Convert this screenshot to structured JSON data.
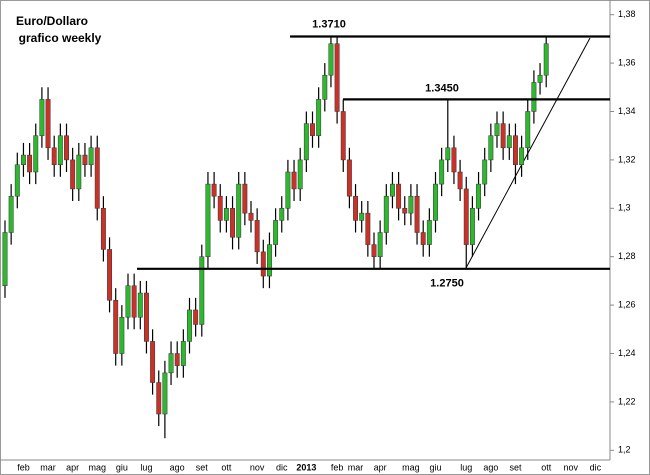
{
  "chart_data": {
    "type": "candlestick",
    "title_lines": [
      "Euro/Dollaro",
      "grafico weekly"
    ],
    "categories": [
      null,
      null,
      null,
      "feb",
      null,
      null,
      null,
      "mar",
      null,
      null,
      null,
      "apr",
      null,
      null,
      null,
      "mag",
      null,
      null,
      null,
      "giu",
      null,
      null,
      null,
      "lug",
      null,
      null,
      null,
      null,
      "ago",
      null,
      null,
      null,
      "set",
      null,
      null,
      null,
      "ott",
      null,
      null,
      null,
      null,
      "nov",
      null,
      null,
      null,
      "dic",
      null,
      null,
      null,
      "2013",
      null,
      null,
      null,
      null,
      "feb",
      null,
      null,
      "mar",
      null,
      null,
      null,
      "apr",
      null,
      null,
      null,
      null,
      "mag",
      null,
      null,
      null,
      "giu",
      null,
      null,
      null,
      null,
      "lug",
      null,
      null,
      null,
      "ago",
      null,
      null,
      null,
      "set",
      null,
      null,
      null,
      null,
      "ott",
      null,
      null,
      null,
      "nov",
      null,
      null,
      null,
      "dic"
    ],
    "open": [
      1.268,
      1.29,
      1.305,
      1.318,
      1.322,
      1.315,
      1.33,
      1.345,
      1.325,
      1.318,
      1.33,
      1.32,
      1.308,
      1.322,
      1.318,
      1.325,
      1.3,
      1.283,
      1.262,
      1.24,
      1.255,
      1.268,
      1.255,
      1.265,
      1.245,
      1.228,
      1.215,
      1.232,
      1.24,
      1.235,
      1.245,
      1.258,
      1.252,
      1.28,
      1.31,
      1.305,
      1.295,
      1.3,
      1.288,
      1.31,
      1.298,
      1.295,
      1.282,
      1.272,
      1.285,
      1.295,
      1.3,
      1.315,
      1.308,
      1.32,
      1.335,
      1.33,
      1.345,
      1.355,
      1.368,
      1.34,
      1.32,
      1.305,
      1.295,
      1.298,
      1.285,
      1.28,
      1.29,
      1.305,
      1.31,
      1.3,
      1.298,
      1.305,
      1.29,
      1.285,
      1.295,
      1.31,
      1.32,
      1.325,
      1.315,
      1.308,
      1.285,
      1.3,
      1.31,
      1.32,
      1.33,
      1.335,
      1.325,
      1.33,
      1.318,
      1.325,
      1.34,
      1.352,
      1.355,
      null,
      null,
      null,
      null,
      null,
      null,
      null,
      null
    ],
    "high": [
      1.295,
      1.31,
      1.323,
      1.327,
      1.327,
      1.335,
      1.35,
      1.35,
      1.33,
      1.335,
      1.335,
      1.325,
      1.327,
      1.327,
      1.33,
      1.33,
      1.305,
      1.288,
      1.267,
      1.26,
      1.273,
      1.273,
      1.27,
      1.27,
      1.25,
      1.233,
      1.237,
      1.245,
      1.245,
      1.25,
      1.263,
      1.263,
      1.285,
      1.315,
      1.315,
      1.31,
      1.305,
      1.305,
      1.315,
      1.315,
      1.303,
      1.3,
      1.287,
      1.29,
      1.3,
      1.305,
      1.32,
      1.32,
      1.325,
      1.34,
      1.34,
      1.35,
      1.36,
      1.371,
      1.371,
      1.345,
      1.325,
      1.31,
      1.303,
      1.303,
      1.29,
      1.295,
      1.31,
      1.315,
      1.315,
      1.305,
      1.31,
      1.31,
      1.295,
      1.3,
      1.315,
      1.325,
      1.345,
      1.33,
      1.32,
      1.313,
      1.305,
      1.315,
      1.325,
      1.335,
      1.34,
      1.34,
      1.335,
      1.335,
      1.33,
      1.345,
      1.357,
      1.36,
      1.371,
      null,
      null,
      null,
      null,
      null,
      null,
      null,
      null
    ],
    "low": [
      1.263,
      1.285,
      1.3,
      1.313,
      1.31,
      1.31,
      1.325,
      1.32,
      1.313,
      1.313,
      1.315,
      1.303,
      1.303,
      1.313,
      1.313,
      1.295,
      1.278,
      1.257,
      1.235,
      1.235,
      1.25,
      1.25,
      1.25,
      1.24,
      1.223,
      1.21,
      1.205,
      1.227,
      1.23,
      1.23,
      1.24,
      1.247,
      1.247,
      1.275,
      1.3,
      1.29,
      1.29,
      1.283,
      1.283,
      1.293,
      1.29,
      1.277,
      1.267,
      1.267,
      1.28,
      1.29,
      1.295,
      1.303,
      1.303,
      1.315,
      1.325,
      1.325,
      1.34,
      1.35,
      1.335,
      1.315,
      1.3,
      1.29,
      1.29,
      1.28,
      1.275,
      1.275,
      1.285,
      1.3,
      1.295,
      1.293,
      1.293,
      1.285,
      1.28,
      1.28,
      1.29,
      1.305,
      1.315,
      1.31,
      1.303,
      1.275,
      1.28,
      1.295,
      1.305,
      1.315,
      1.325,
      1.32,
      1.32,
      1.31,
      1.313,
      1.32,
      1.335,
      1.347,
      1.35,
      null,
      null,
      null,
      null,
      null,
      null,
      null,
      null
    ],
    "close": [
      1.29,
      1.305,
      1.318,
      1.322,
      1.315,
      1.33,
      1.345,
      1.325,
      1.318,
      1.33,
      1.32,
      1.308,
      1.322,
      1.318,
      1.325,
      1.3,
      1.283,
      1.262,
      1.24,
      1.255,
      1.268,
      1.255,
      1.265,
      1.245,
      1.228,
      1.215,
      1.232,
      1.24,
      1.235,
      1.245,
      1.258,
      1.252,
      1.28,
      1.31,
      1.305,
      1.295,
      1.3,
      1.288,
      1.31,
      1.298,
      1.295,
      1.282,
      1.272,
      1.285,
      1.295,
      1.3,
      1.315,
      1.308,
      1.32,
      1.335,
      1.33,
      1.345,
      1.355,
      1.368,
      1.34,
      1.32,
      1.305,
      1.295,
      1.298,
      1.285,
      1.28,
      1.29,
      1.305,
      1.31,
      1.3,
      1.298,
      1.305,
      1.29,
      1.285,
      1.295,
      1.31,
      1.32,
      1.325,
      1.315,
      1.308,
      1.285,
      1.3,
      1.31,
      1.32,
      1.33,
      1.335,
      1.325,
      1.33,
      1.318,
      1.325,
      1.34,
      1.352,
      1.355,
      1.368,
      null,
      null,
      null,
      null,
      null,
      null,
      null,
      null
    ],
    "up_color": "#2db82d",
    "down_color": "#c83228",
    "levels": [
      {
        "value": 1.371,
        "label": "1.3710"
      },
      {
        "value": 1.345,
        "label": "1.3450"
      },
      {
        "value": 1.275,
        "label": "1.2750"
      }
    ],
    "ylim": [
      1.196,
      1.384
    ],
    "yticks": [
      {
        "value": 1.2,
        "label": "1,2"
      },
      {
        "value": 1.22,
        "label": "1,22"
      },
      {
        "value": 1.24,
        "label": "1,24"
      },
      {
        "value": 1.26,
        "label": "1,26"
      },
      {
        "value": 1.28,
        "label": "1,28"
      },
      {
        "value": 1.3,
        "label": "1,3"
      },
      {
        "value": 1.32,
        "label": "1,32"
      },
      {
        "value": 1.34,
        "label": "1,34"
      },
      {
        "value": 1.36,
        "label": "1,36"
      },
      {
        "value": 1.38,
        "label": "1,38"
      }
    ]
  }
}
